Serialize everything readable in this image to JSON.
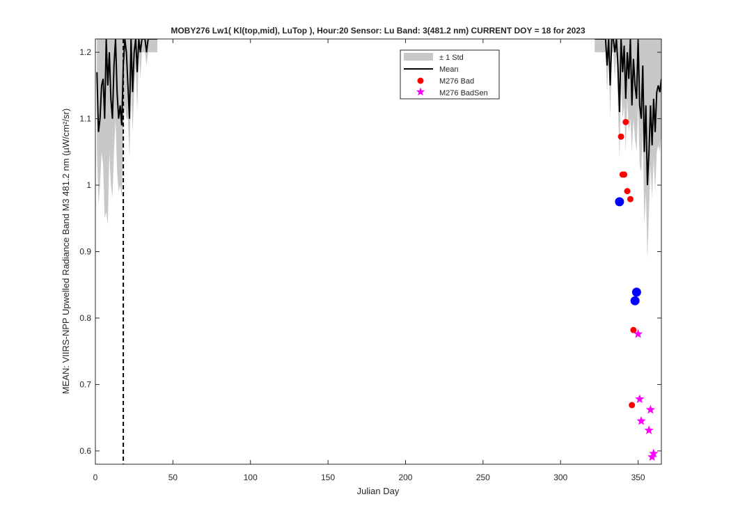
{
  "chart_data": {
    "type": "line",
    "title": "MOBY276   Lw1( Kl(top,mid), LuTop ),   Hour:20 Sensor: Lu Band: 3(481.2 nm)   CURRENT DOY = 18 for 2023",
    "xlabel": "Julian Day",
    "ylabel": "MEAN: VIIRS-NPP Upwelled Radiance Band M3 481.2 nm (µW/cm²/sr)",
    "xlim": [
      0,
      365
    ],
    "ylim": [
      0.58,
      1.22
    ],
    "x_ticks": [
      0,
      50,
      100,
      150,
      200,
      250,
      300,
      350
    ],
    "x_tick_labels": [
      "0",
      "50",
      "100",
      "150",
      "200",
      "250",
      "300",
      "350"
    ],
    "y_ticks": [
      0.6,
      0.7,
      0.8,
      0.9,
      1.0,
      1.1,
      1.2
    ],
    "y_tick_labels": [
      "0.6",
      "0.7",
      "0.8",
      "0.9",
      "1",
      "1.1",
      "1.2"
    ],
    "current_doy": 18,
    "grid": false,
    "legend_position": "top-right",
    "legend": [
      {
        "label": "± 1 Std",
        "style": "band"
      },
      {
        "label": "Mean",
        "style": "line"
      },
      {
        "label": "M276 Bad",
        "style": "dot"
      },
      {
        "label": "M276 BadSen",
        "style": "star"
      }
    ],
    "colors": {
      "std_band": "#c8c8c8",
      "mean": "#000000",
      "bad": "#ff0000",
      "badsen": "#ff00ff",
      "good": "#0000ff",
      "doy_line": "#000000"
    },
    "series": [
      {
        "name": "Mean",
        "x": [
          1,
          2,
          3,
          4,
          5,
          6,
          7,
          8,
          9,
          10,
          11,
          12,
          13,
          14,
          15,
          16,
          17,
          18,
          19,
          20,
          21,
          22,
          23,
          24,
          25,
          26,
          27,
          28,
          29,
          30,
          31,
          32,
          33,
          34,
          35,
          36,
          37,
          38,
          39,
          40,
          322,
          323,
          324,
          325,
          326,
          327,
          328,
          329,
          330,
          331,
          332,
          333,
          334,
          335,
          336,
          337,
          338,
          339,
          340,
          341,
          342,
          343,
          344,
          345,
          346,
          347,
          348,
          349,
          350,
          351,
          352,
          353,
          354,
          355,
          356,
          357,
          358,
          359,
          360,
          361,
          362,
          363,
          364,
          365
        ],
        "y": [
          1.17,
          1.08,
          1.1,
          1.15,
          1.16,
          1.1,
          1.22,
          1.15,
          1.2,
          1.13,
          1.1,
          1.18,
          1.22,
          1.14,
          1.1,
          1.12,
          1.09,
          1.18,
          1.22,
          1.2,
          1.15,
          1.1,
          1.22,
          1.14,
          1.2,
          1.22,
          1.17,
          1.22,
          1.2,
          1.22,
          1.22,
          1.22,
          1.2,
          1.22,
          1.22,
          1.22,
          1.22,
          1.22,
          1.22,
          1.22,
          1.22,
          1.22,
          1.22,
          1.22,
          1.22,
          1.22,
          1.22,
          1.22,
          1.18,
          1.22,
          1.15,
          1.22,
          1.22,
          1.2,
          1.22,
          1.18,
          1.11,
          1.22,
          1.17,
          1.21,
          1.13,
          1.2,
          1.16,
          1.22,
          1.12,
          1.19,
          1.15,
          1.13,
          1.22,
          1.12,
          1.1,
          1.18,
          1.05,
          1.12,
          1.0,
          1.05,
          1.12,
          1.06,
          1.13,
          1.08,
          1.14,
          1.15,
          1.14,
          1.16
        ]
      },
      {
        "name": "± 1 Std",
        "x": [
          1,
          2,
          3,
          4,
          5,
          6,
          7,
          8,
          9,
          10,
          11,
          12,
          13,
          14,
          15,
          16,
          17,
          18,
          19,
          20,
          21,
          22,
          23,
          24,
          25,
          26,
          27,
          28,
          29,
          30,
          31,
          32,
          33,
          34,
          35,
          36,
          37,
          38,
          39,
          40,
          322,
          323,
          324,
          325,
          326,
          327,
          328,
          329,
          330,
          331,
          332,
          333,
          334,
          335,
          336,
          337,
          338,
          339,
          340,
          341,
          342,
          343,
          344,
          345,
          346,
          347,
          348,
          349,
          350,
          351,
          352,
          353,
          354,
          355,
          356,
          357,
          358,
          359,
          360,
          361,
          362,
          363,
          364,
          365
        ],
        "lower": [
          1.05,
          0.97,
          1.0,
          1.05,
          1.03,
          0.95,
          0.96,
          0.94,
          1.05,
          1.0,
          0.98,
          1.05,
          1.1,
          1.02,
          0.99,
          1.0,
          0.98,
          1.08,
          1.12,
          1.1,
          1.1,
          1.04,
          1.15,
          1.08,
          1.14,
          1.18,
          1.11,
          1.2,
          1.16,
          1.2,
          1.2,
          1.2,
          1.18,
          1.2,
          1.2,
          1.2,
          1.2,
          1.2,
          1.2,
          1.2,
          1.2,
          1.2,
          1.2,
          1.2,
          1.2,
          1.2,
          1.2,
          1.2,
          1.14,
          1.2,
          1.1,
          1.2,
          1.2,
          1.16,
          1.2,
          1.12,
          1.04,
          1.15,
          1.1,
          1.12,
          1.05,
          1.13,
          1.08,
          1.1,
          1.05,
          1.1,
          1.07,
          1.05,
          1.12,
          1.03,
          1.02,
          1.08,
          0.94,
          0.99,
          0.89,
          0.96,
          1.03,
          0.98,
          1.04,
          0.99,
          1.05,
          1.06,
          1.05,
          1.08
        ],
        "upper": [
          1.22,
          1.22,
          1.22,
          1.22,
          1.22,
          1.22,
          1.22,
          1.22,
          1.22,
          1.22,
          1.22,
          1.22,
          1.22,
          1.22,
          1.22,
          1.22,
          1.22,
          1.22,
          1.22,
          1.22,
          1.22,
          1.22,
          1.22,
          1.22,
          1.22,
          1.22,
          1.22,
          1.22,
          1.22,
          1.22,
          1.22,
          1.22,
          1.22,
          1.22,
          1.22,
          1.22,
          1.22,
          1.22,
          1.22,
          1.22,
          1.22,
          1.22,
          1.22,
          1.22,
          1.22,
          1.22,
          1.22,
          1.22,
          1.22,
          1.22,
          1.22,
          1.22,
          1.22,
          1.22,
          1.22,
          1.22,
          1.22,
          1.22,
          1.22,
          1.22,
          1.22,
          1.22,
          1.22,
          1.22,
          1.22,
          1.22,
          1.22,
          1.22,
          1.22,
          1.22,
          1.22,
          1.22,
          1.22,
          1.22,
          1.22,
          1.22,
          1.22,
          1.22,
          1.22,
          1.22,
          1.22,
          1.22,
          1.22,
          1.22
        ]
      },
      {
        "name": "M276 Bad",
        "x": [
          339,
          342,
          340,
          341,
          343,
          345,
          347,
          346
        ],
        "y": [
          1.073,
          1.095,
          1.016,
          1.016,
          0.991,
          0.979,
          0.782,
          0.669
        ]
      },
      {
        "name": "M276 BadSen",
        "x": [
          350,
          351,
          352,
          357,
          358,
          360,
          359
        ],
        "y": [
          0.776,
          0.678,
          0.645,
          0.631,
          0.662,
          0.596,
          0.591
        ]
      },
      {
        "x": [
          338,
          349,
          348
        ],
        "y": [
          0.975,
          0.839,
          0.826
        ]
      }
    ]
  }
}
